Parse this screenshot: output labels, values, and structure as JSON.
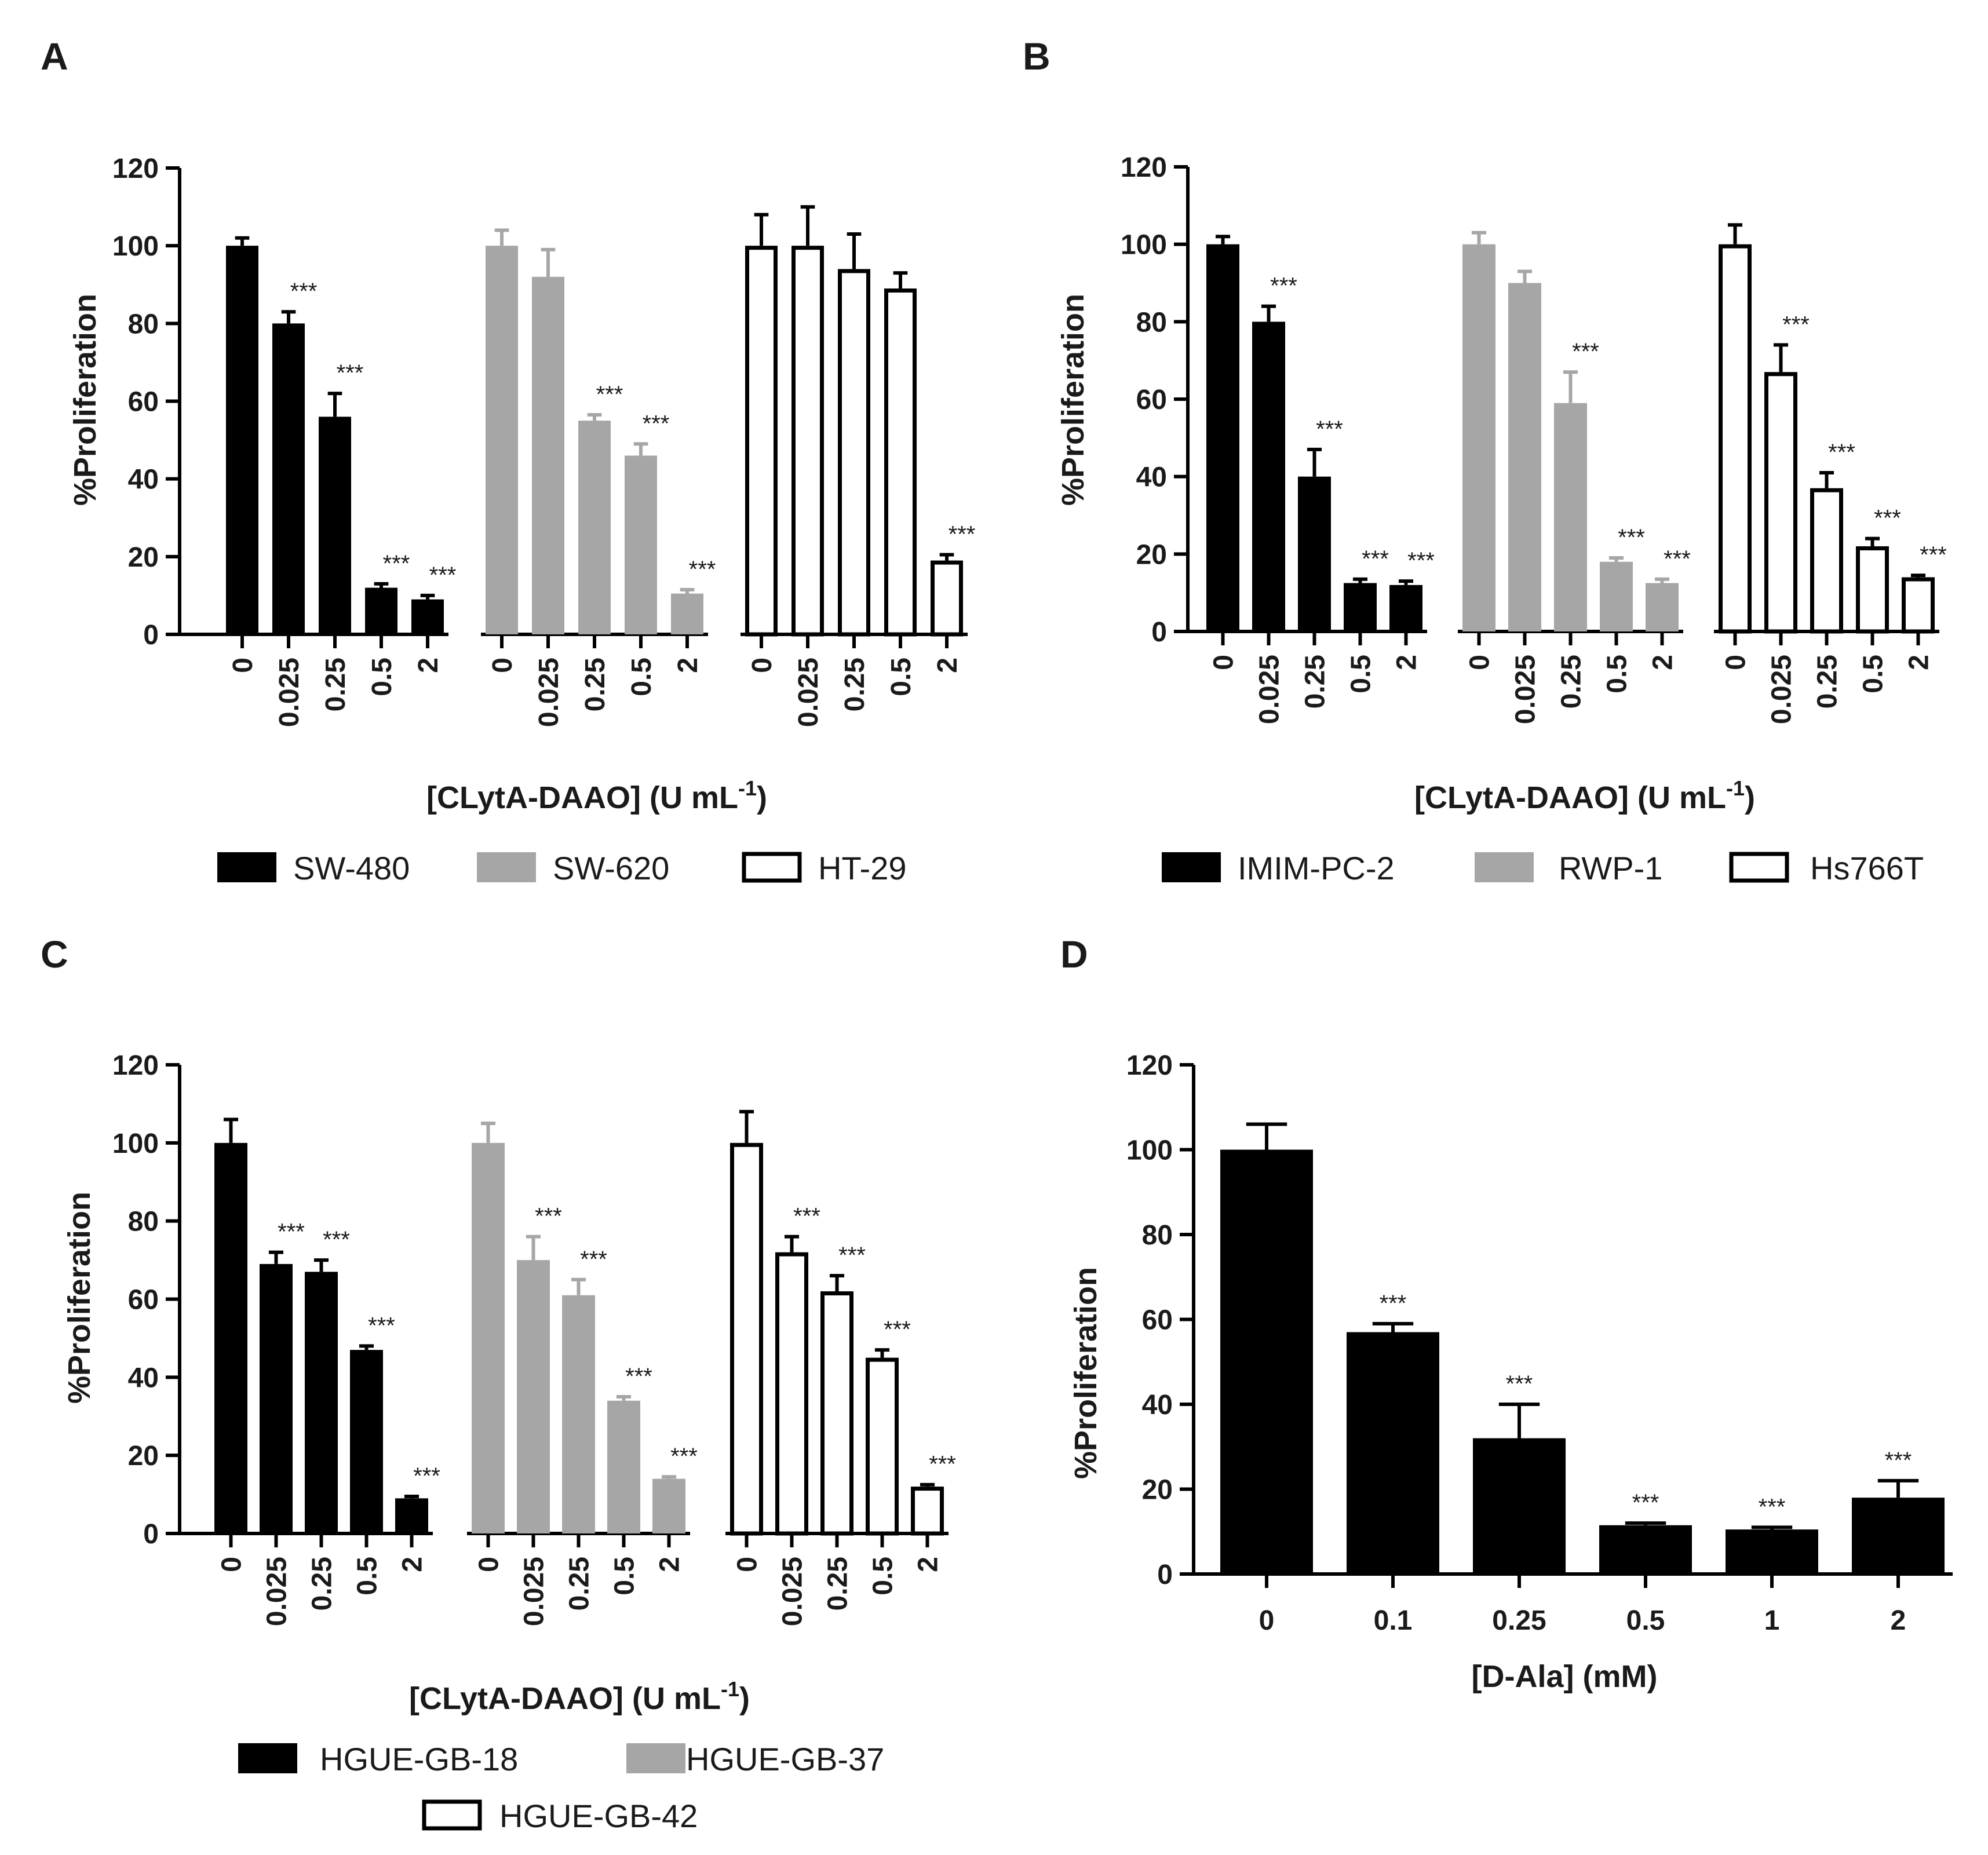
{
  "figure": {
    "background": "#ffffff"
  },
  "chart_data": [
    {
      "panel": "A",
      "type": "bar",
      "xlabel": "[CLytA-DAAO] (U mL",
      "xlabel_sup": "-1",
      "xlabel_end": ")",
      "ylabel": "%Proliferation",
      "ylim": [
        0,
        120
      ],
      "yticks": [
        0,
        20,
        40,
        60,
        80,
        100,
        120
      ],
      "categories": [
        "0",
        "0.025",
        "0.25",
        "0.5",
        "2"
      ],
      "series": [
        {
          "name": "SW-480",
          "fill": "#000000",
          "values": [
            100,
            80,
            56,
            12,
            9
          ],
          "errors": [
            2,
            3,
            6,
            1,
            1
          ],
          "sig": [
            "",
            "***",
            "***",
            "***",
            "***"
          ]
        },
        {
          "name": "SW-620",
          "fill": "#a6a6a6",
          "values": [
            100,
            92,
            55,
            46,
            10.5
          ],
          "errors": [
            4,
            7,
            1.5,
            3,
            1
          ],
          "sig": [
            "",
            "",
            "***",
            "***",
            "***"
          ]
        },
        {
          "name": "HT-29",
          "fill": "#ffffff",
          "values": [
            100,
            100,
            94,
            89,
            19
          ],
          "errors": [
            8,
            10,
            9,
            4,
            1.5
          ],
          "sig": [
            "",
            "",
            "",
            "",
            "***"
          ]
        }
      ],
      "legend": [
        "SW-480",
        "SW-620",
        "HT-29"
      ]
    },
    {
      "panel": "B",
      "type": "bar",
      "xlabel": "[CLytA-DAAO] (U mL",
      "xlabel_sup": "-1",
      "xlabel_end": ")",
      "ylabel": "%Proliferation",
      "ylim": [
        0,
        120
      ],
      "yticks": [
        0,
        20,
        40,
        60,
        80,
        100,
        120
      ],
      "categories": [
        "0",
        "0.025",
        "0.25",
        "0.5",
        "2"
      ],
      "series": [
        {
          "name": "IMIM-PC-2",
          "fill": "#000000",
          "values": [
            100,
            80,
            40,
            12.5,
            12
          ],
          "errors": [
            2,
            4,
            7,
            1,
            1
          ],
          "sig": [
            "",
            "***",
            "***",
            "***",
            "***"
          ]
        },
        {
          "name": "RWP-1",
          "fill": "#a6a6a6",
          "values": [
            100,
            90,
            59,
            18,
            12.5
          ],
          "errors": [
            3,
            3,
            8,
            1,
            1
          ],
          "sig": [
            "",
            "",
            "***",
            "***",
            "***"
          ]
        },
        {
          "name": "Hs766T",
          "fill": "#ffffff",
          "values": [
            100,
            67,
            37,
            22,
            14
          ],
          "errors": [
            5,
            7,
            4,
            2,
            0.5
          ],
          "sig": [
            "",
            "***",
            "***",
            "***",
            "***"
          ]
        }
      ],
      "legend": [
        "IMIM-PC-2",
        "RWP-1",
        "Hs766T"
      ]
    },
    {
      "panel": "C",
      "type": "bar",
      "xlabel": "[CLytA-DAAO] (U mL",
      "xlabel_sup": "-1",
      "xlabel_end": ")",
      "ylabel": "%Proliferation",
      "ylim": [
        0,
        120
      ],
      "yticks": [
        0,
        20,
        40,
        60,
        80,
        100,
        120
      ],
      "categories": [
        "0",
        "0.025",
        "0.25",
        "0.5",
        "2"
      ],
      "series": [
        {
          "name": "HGUE-GB-18",
          "fill": "#000000",
          "values": [
            100,
            69,
            67,
            47,
            9
          ],
          "errors": [
            6,
            3,
            3,
            1,
            0.5
          ],
          "sig": [
            "",
            "***",
            "***",
            "***",
            "***"
          ]
        },
        {
          "name": "HGUE-GB-37",
          "fill": "#a6a6a6",
          "values": [
            100,
            70,
            61,
            34,
            14
          ],
          "errors": [
            5,
            6,
            4,
            1,
            0.5
          ],
          "sig": [
            "",
            "***",
            "***",
            "***",
            "***"
          ]
        },
        {
          "name": "HGUE-GB-42",
          "fill": "#ffffff",
          "values": [
            100,
            72,
            62,
            45,
            12
          ],
          "errors": [
            8,
            4,
            4,
            2,
            0.5
          ],
          "sig": [
            "",
            "***",
            "***",
            "***",
            "***"
          ]
        }
      ],
      "legend": [
        "HGUE-GB-18",
        "HGUE-GB-37",
        "HGUE-GB-42"
      ]
    },
    {
      "panel": "D",
      "type": "bar",
      "xlabel": "[D-Ala] (mM)",
      "ylabel": "%Proliferation",
      "ylim": [
        0,
        120
      ],
      "yticks": [
        0,
        20,
        40,
        60,
        80,
        100,
        120
      ],
      "categories": [
        "0",
        "0.1",
        "0.25",
        "0.5",
        "1",
        "2"
      ],
      "series": [
        {
          "name": "D-Ala",
          "fill": "#000000",
          "values": [
            100,
            57,
            32,
            11.5,
            10.5,
            18
          ],
          "errors": [
            6,
            2,
            8,
            0.5,
            0.5,
            4
          ],
          "sig": [
            "",
            "***",
            "***",
            "***",
            "***",
            "***"
          ]
        }
      ]
    }
  ]
}
